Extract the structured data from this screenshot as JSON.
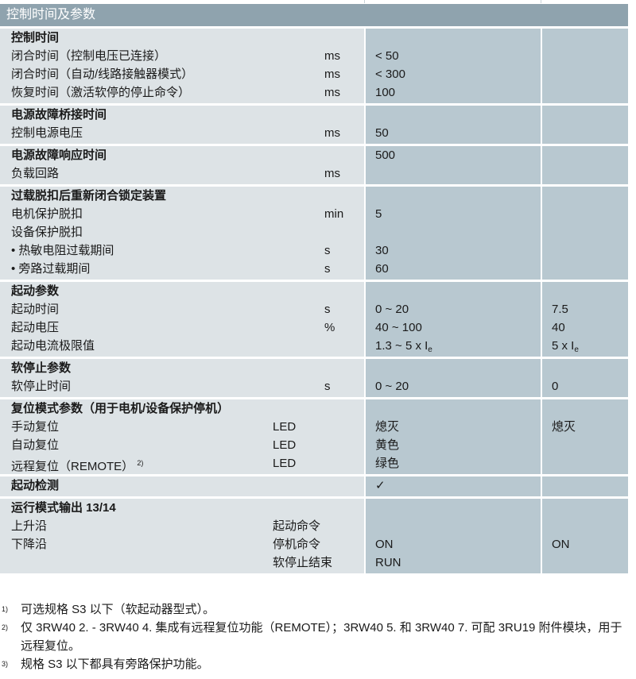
{
  "header": {
    "title": "控制时间及参数"
  },
  "sections": [
    {
      "rows": [
        {
          "label": "控制时间",
          "bold": true
        },
        {
          "label": "闭合时间（控制电压已连接）",
          "unit": "ms",
          "v2": "< 50"
        },
        {
          "label": "闭合时间（自动/线路接触器模式）",
          "unit": "ms",
          "v2": "< 300"
        },
        {
          "label": "恢复时间（激活软停的停止命令）",
          "unit": "ms",
          "v2": "100"
        }
      ]
    },
    {
      "rows": [
        {
          "label": "电源故障桥接时间",
          "bold": true
        },
        {
          "label": "控制电源电压",
          "unit": "ms",
          "v2": "50"
        }
      ]
    },
    {
      "rows": [
        {
          "label": "电源故障响应时间",
          "bold": true,
          "v2": "500"
        },
        {
          "label": "负载回路",
          "unit": "ms"
        }
      ]
    },
    {
      "rows": [
        {
          "label": "过载脱扣后重新闭合锁定装置",
          "bold": true
        },
        {
          "label": "电机保护脱扣",
          "unit": "min",
          "v2": "5"
        },
        {
          "label": "设备保护脱扣"
        },
        {
          "label": "• 热敏电阻过载期间",
          "unit": "s",
          "v2": "30"
        },
        {
          "label": "• 旁路过载期间",
          "unit": "s",
          "v2": "60"
        }
      ]
    },
    {
      "rows": [
        {
          "label": "起动参数",
          "bold": true
        },
        {
          "label": "起动时间",
          "unit": "s",
          "v2": "0 ~ 20",
          "v3": "7.5"
        },
        {
          "label": "起动电压",
          "unit": "%",
          "v2": "40 ~ 100",
          "v3": "40"
        },
        {
          "label": "起动电流极限值",
          "v2": "1.3 ~ 5 x I",
          "v2_sub": "e",
          "v3": "5 x I",
          "v3_sub": "e"
        }
      ]
    },
    {
      "rows": [
        {
          "label": "软停止参数",
          "bold": true
        },
        {
          "label": "软停止时间",
          "unit": "s",
          "v2": "0 ~ 20",
          "v3": "0"
        }
      ]
    },
    {
      "rows": [
        {
          "label": "复位模式参数（用于电机/设备保护停机）",
          "bold": true
        },
        {
          "label": "手动复位",
          "led": "LED",
          "v2": "熄灭",
          "v3": "熄灭"
        },
        {
          "label": "自动复位",
          "led": "LED",
          "v2": "黄色"
        },
        {
          "label": "远程复位（REMOTE）",
          "sup": "2)",
          "led": "LED",
          "v2": "绿色"
        }
      ]
    },
    {
      "rows": [
        {
          "label": "起动检测",
          "bold": true,
          "v2": "✓"
        }
      ]
    },
    {
      "rows": [
        {
          "label": "运行模式输出 13/14",
          "bold": true
        },
        {
          "label": "上升沿",
          "led": "起动命令"
        },
        {
          "label": "下降沿",
          "led": "停机命令",
          "v2": "ON",
          "v3": "ON"
        },
        {
          "label": "",
          "led": "软停止结束",
          "v2": "RUN"
        }
      ]
    }
  ],
  "footnotes": [
    {
      "mark": "1)",
      "text": "可选规格 S3 以下（软起动器型式）。"
    },
    {
      "mark": "2)",
      "text": "仅 3RW40 2. - 3RW40 4. 集成有远程复位功能（REMOTE）；3RW40 5. 和 3RW40 7. 可配 3RU19 附件模块，用于远程复位。"
    },
    {
      "mark": "3)",
      "text": "规格 S3 以下都具有旁路保护功能。"
    }
  ]
}
